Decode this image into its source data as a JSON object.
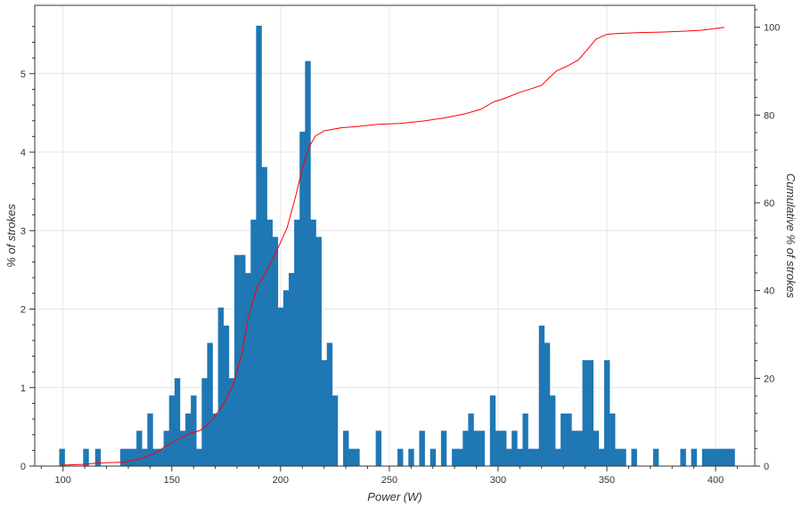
{
  "chart_data": {
    "type": "bar",
    "xlabel": "Power (W)",
    "ylabel": "% of strokes",
    "y2label": "Cumulative % of strokes",
    "xlim": [
      87,
      418
    ],
    "ylim": [
      0,
      5.87
    ],
    "y2lim": [
      0,
      105
    ],
    "xticks": [
      100,
      150,
      200,
      250,
      300,
      350,
      400
    ],
    "yticks": [
      0,
      1,
      2,
      3,
      4,
      5
    ],
    "y2ticks": [
      0,
      20,
      40,
      60,
      80,
      100
    ],
    "grid": true,
    "colors": {
      "bars": "#1f77b4",
      "cumulative": "#ff0000",
      "grid": "#e6e6e6"
    },
    "bin_width": 2.5,
    "histogram": [
      {
        "x": 99.5,
        "y": 0.22
      },
      {
        "x": 110.5,
        "y": 0.22
      },
      {
        "x": 116,
        "y": 0.22
      },
      {
        "x": 127.5,
        "y": 0.22
      },
      {
        "x": 130,
        "y": 0.22
      },
      {
        "x": 132.5,
        "y": 0.22
      },
      {
        "x": 135,
        "y": 0.45
      },
      {
        "x": 137.5,
        "y": 0.22
      },
      {
        "x": 140,
        "y": 0.67
      },
      {
        "x": 142.5,
        "y": 0.22
      },
      {
        "x": 145,
        "y": 0.22
      },
      {
        "x": 147.5,
        "y": 0.45
      },
      {
        "x": 150,
        "y": 0.9
      },
      {
        "x": 152.5,
        "y": 1.12
      },
      {
        "x": 155,
        "y": 0.45
      },
      {
        "x": 157.5,
        "y": 0.67
      },
      {
        "x": 160,
        "y": 0.9
      },
      {
        "x": 162.5,
        "y": 0.22
      },
      {
        "x": 165,
        "y": 1.12
      },
      {
        "x": 167.5,
        "y": 1.57
      },
      {
        "x": 170,
        "y": 0.67
      },
      {
        "x": 172.5,
        "y": 2.02
      },
      {
        "x": 175,
        "y": 1.79
      },
      {
        "x": 177.5,
        "y": 1.12
      },
      {
        "x": 180,
        "y": 2.69
      },
      {
        "x": 182.5,
        "y": 2.69
      },
      {
        "x": 185,
        "y": 2.46
      },
      {
        "x": 187.5,
        "y": 3.14
      },
      {
        "x": 190,
        "y": 5.61
      },
      {
        "x": 192.5,
        "y": 3.81
      },
      {
        "x": 195,
        "y": 3.14
      },
      {
        "x": 197.5,
        "y": 2.92
      },
      {
        "x": 200,
        "y": 2.02
      },
      {
        "x": 202.5,
        "y": 2.24
      },
      {
        "x": 205,
        "y": 2.46
      },
      {
        "x": 207.5,
        "y": 3.14
      },
      {
        "x": 210,
        "y": 4.26
      },
      {
        "x": 212.5,
        "y": 5.16
      },
      {
        "x": 215,
        "y": 3.14
      },
      {
        "x": 217.5,
        "y": 2.92
      },
      {
        "x": 220,
        "y": 1.35
      },
      {
        "x": 222.5,
        "y": 1.57
      },
      {
        "x": 225,
        "y": 0.9
      },
      {
        "x": 230,
        "y": 0.45
      },
      {
        "x": 232.5,
        "y": 0.22
      },
      {
        "x": 235,
        "y": 0.22
      },
      {
        "x": 245,
        "y": 0.45
      },
      {
        "x": 255,
        "y": 0.22
      },
      {
        "x": 260,
        "y": 0.22
      },
      {
        "x": 265,
        "y": 0.45
      },
      {
        "x": 270,
        "y": 0.22
      },
      {
        "x": 275,
        "y": 0.45
      },
      {
        "x": 280,
        "y": 0.22
      },
      {
        "x": 282.5,
        "y": 0.22
      },
      {
        "x": 285,
        "y": 0.45
      },
      {
        "x": 287.5,
        "y": 0.67
      },
      {
        "x": 290,
        "y": 0.45
      },
      {
        "x": 292.5,
        "y": 0.45
      },
      {
        "x": 297.5,
        "y": 0.9
      },
      {
        "x": 300,
        "y": 0.45
      },
      {
        "x": 302.5,
        "y": 0.45
      },
      {
        "x": 305,
        "y": 0.22
      },
      {
        "x": 307.5,
        "y": 0.45
      },
      {
        "x": 310,
        "y": 0.22
      },
      {
        "x": 312.5,
        "y": 0.67
      },
      {
        "x": 315,
        "y": 0.22
      },
      {
        "x": 317.5,
        "y": 0.22
      },
      {
        "x": 320,
        "y": 1.79
      },
      {
        "x": 322.5,
        "y": 1.57
      },
      {
        "x": 325,
        "y": 0.9
      },
      {
        "x": 327.5,
        "y": 0.22
      },
      {
        "x": 330,
        "y": 0.67
      },
      {
        "x": 332.5,
        "y": 0.67
      },
      {
        "x": 335,
        "y": 0.45
      },
      {
        "x": 337.5,
        "y": 0.45
      },
      {
        "x": 340,
        "y": 1.35
      },
      {
        "x": 342.5,
        "y": 1.35
      },
      {
        "x": 345,
        "y": 0.45
      },
      {
        "x": 347.5,
        "y": 0.22
      },
      {
        "x": 350,
        "y": 1.35
      },
      {
        "x": 352.5,
        "y": 0.67
      },
      {
        "x": 355,
        "y": 0.22
      },
      {
        "x": 357.5,
        "y": 0.22
      },
      {
        "x": 362.5,
        "y": 0.22
      },
      {
        "x": 372.5,
        "y": 0.22
      },
      {
        "x": 385,
        "y": 0.22
      },
      {
        "x": 390,
        "y": 0.22
      },
      {
        "x": 395,
        "y": 0.22
      },
      {
        "x": 397.5,
        "y": 0.22
      },
      {
        "x": 400,
        "y": 0.22
      },
      {
        "x": 402.5,
        "y": 0.22
      },
      {
        "x": 405,
        "y": 0.22
      },
      {
        "x": 407.5,
        "y": 0.22
      }
    ],
    "cumulative": [
      {
        "x": 99,
        "y": 0.2
      },
      {
        "x": 110,
        "y": 0.4
      },
      {
        "x": 116,
        "y": 0.7
      },
      {
        "x": 128,
        "y": 0.9
      },
      {
        "x": 133,
        "y": 1.4
      },
      {
        "x": 138,
        "y": 2.1
      },
      {
        "x": 143,
        "y": 3.1
      },
      {
        "x": 148,
        "y": 4.8
      },
      {
        "x": 153,
        "y": 6.1
      },
      {
        "x": 158,
        "y": 7.4
      },
      {
        "x": 163,
        "y": 8.1
      },
      {
        "x": 168,
        "y": 10.2
      },
      {
        "x": 173,
        "y": 13.5
      },
      {
        "x": 178,
        "y": 18.3
      },
      {
        "x": 182,
        "y": 25.2
      },
      {
        "x": 185,
        "y": 33.5
      },
      {
        "x": 189,
        "y": 40.6
      },
      {
        "x": 193,
        "y": 44.0
      },
      {
        "x": 198,
        "y": 48.8
      },
      {
        "x": 203,
        "y": 54.3
      },
      {
        "x": 207,
        "y": 61.6
      },
      {
        "x": 210,
        "y": 67.9
      },
      {
        "x": 213,
        "y": 72.6
      },
      {
        "x": 216,
        "y": 75.2
      },
      {
        "x": 220,
        "y": 76.4
      },
      {
        "x": 228,
        "y": 77.1
      },
      {
        "x": 235,
        "y": 77.4
      },
      {
        "x": 245,
        "y": 77.9
      },
      {
        "x": 255,
        "y": 78.1
      },
      {
        "x": 265,
        "y": 78.6
      },
      {
        "x": 275,
        "y": 79.3
      },
      {
        "x": 285,
        "y": 80.3
      },
      {
        "x": 292,
        "y": 81.3
      },
      {
        "x": 298,
        "y": 83.0
      },
      {
        "x": 303,
        "y": 83.8
      },
      {
        "x": 310,
        "y": 85.2
      },
      {
        "x": 316,
        "y": 86.1
      },
      {
        "x": 320,
        "y": 86.8
      },
      {
        "x": 324,
        "y": 88.7
      },
      {
        "x": 327,
        "y": 90.1
      },
      {
        "x": 332,
        "y": 91.2
      },
      {
        "x": 337,
        "y": 92.6
      },
      {
        "x": 341,
        "y": 94.9
      },
      {
        "x": 345,
        "y": 97.3
      },
      {
        "x": 350,
        "y": 98.4
      },
      {
        "x": 355,
        "y": 98.6
      },
      {
        "x": 365,
        "y": 98.8
      },
      {
        "x": 375,
        "y": 98.9
      },
      {
        "x": 385,
        "y": 99.1
      },
      {
        "x": 393,
        "y": 99.3
      },
      {
        "x": 398,
        "y": 99.6
      },
      {
        "x": 404,
        "y": 100.0
      }
    ]
  }
}
